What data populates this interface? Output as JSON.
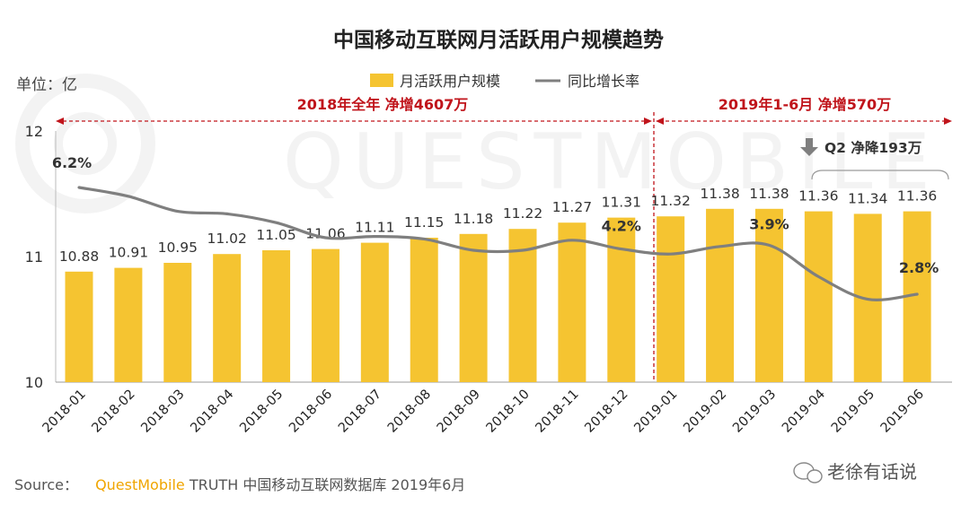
{
  "chart_data": {
    "type": "bar",
    "title": "中国移动互联网月活跃用户规模趋势",
    "unit_label": "单位：亿",
    "categories": [
      "2018-01",
      "2018-02",
      "2018-03",
      "2018-04",
      "2018-05",
      "2018-06",
      "2018-07",
      "2018-08",
      "2018-09",
      "2018-10",
      "2018-11",
      "2018-12",
      "2019-01",
      "2019-02",
      "2019-03",
      "2019-04",
      "2019-05",
      "2019-06"
    ],
    "series": [
      {
        "name": "月活跃用户规模",
        "type": "bar",
        "color": "#f5c431",
        "values": [
          10.88,
          10.91,
          10.95,
          11.02,
          11.05,
          11.06,
          11.11,
          11.15,
          11.18,
          11.22,
          11.27,
          11.31,
          11.32,
          11.38,
          11.38,
          11.36,
          11.34,
          11.36
        ],
        "labels": [
          "10.88",
          "10.91",
          "10.95",
          "11.02",
          "11.05",
          "11.06",
          "11.11",
          "11.15",
          "11.18",
          "11.22",
          "11.27",
          "11.31",
          "11.32",
          "11.38",
          "11.38",
          "11.36",
          "11.34",
          "11.36"
        ]
      },
      {
        "name": "同比增长率",
        "type": "line",
        "color": "#7f7f7f",
        "values": [
          11.55,
          11.48,
          11.36,
          11.34,
          11.27,
          11.15,
          11.16,
          11.14,
          11.05,
          11.05,
          11.13,
          11.06,
          11.02,
          11.08,
          11.09,
          10.84,
          10.66,
          10.7
        ],
        "point_labels": [
          {
            "index": 0,
            "text": "6.2%"
          },
          {
            "index": 11,
            "text": "4.2%"
          },
          {
            "index": 14,
            "text": "3.9%"
          },
          {
            "index": 17,
            "text": "2.8%"
          }
        ]
      }
    ],
    "ylim": [
      10,
      12
    ],
    "yticks": [
      "10",
      "11",
      "12"
    ],
    "annotations": {
      "period_2018": "2018年全年  净增4607万",
      "period_2019": "2019年1-6月  净增570万",
      "q2": "Q2 净降193万"
    },
    "legend": {
      "position": "top-center"
    },
    "grid": false
  },
  "watermark": "QUESTMOBILE",
  "source": {
    "prefix": "Source：",
    "brand": "QuestMobile",
    "rest": " TRUTH 中国移动互联网数据库 2019年6月"
  },
  "wechat": "老徐有话说",
  "colors": {
    "bar": "#f5c431",
    "line": "#7f7f7f",
    "accent_red": "#c0141b",
    "brand": "#f0a500"
  }
}
